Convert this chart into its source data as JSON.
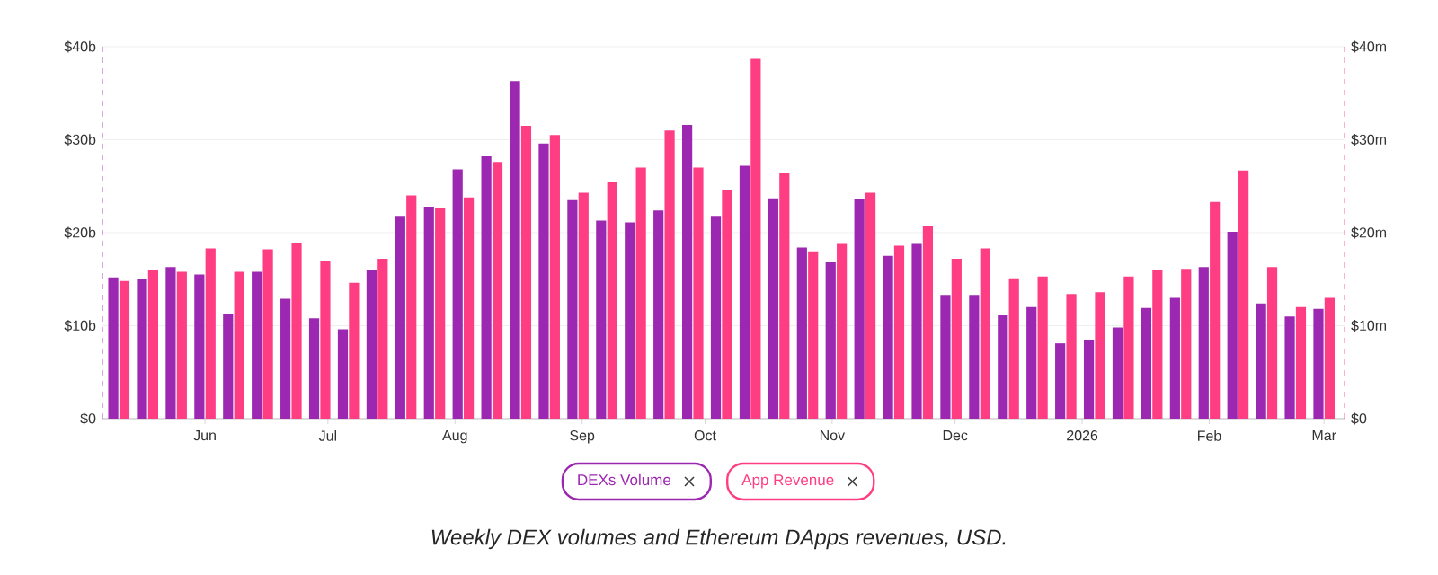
{
  "chart_data": {
    "type": "bar",
    "x": [
      "2025-05-11",
      "2025-05-18",
      "2025-05-25",
      "2025-06-01",
      "2025-06-08",
      "2025-06-15",
      "2025-06-22",
      "2025-06-29",
      "2025-07-06",
      "2025-07-13",
      "2025-07-20",
      "2025-07-27",
      "2025-08-03",
      "2025-08-10",
      "2025-08-17",
      "2025-08-24",
      "2025-08-31",
      "2025-09-07",
      "2025-09-14",
      "2025-09-21",
      "2025-09-28",
      "2025-10-05",
      "2025-10-12",
      "2025-10-19",
      "2025-10-26",
      "2025-11-02",
      "2025-11-09",
      "2025-11-16",
      "2025-11-23",
      "2025-11-30",
      "2025-12-07",
      "2025-12-14",
      "2025-12-21",
      "2025-12-28",
      "2026-01-04",
      "2026-01-11",
      "2026-01-18",
      "2026-01-25",
      "2026-02-01",
      "2026-02-08",
      "2026-02-15",
      "2026-02-22",
      "2026-03-01"
    ],
    "series": [
      {
        "name": "DEXs Volume",
        "color": "#9c27b0",
        "values": [
          15.2,
          15.0,
          16.3,
          15.5,
          11.3,
          15.8,
          12.9,
          10.8,
          9.6,
          16.0,
          21.8,
          22.8,
          26.8,
          28.2,
          36.3,
          29.6,
          23.5,
          21.3,
          21.1,
          22.4,
          31.6,
          21.8,
          27.2,
          23.7,
          18.4,
          16.8,
          23.6,
          17.5,
          18.8,
          13.3,
          13.3,
          11.1,
          12.0,
          8.1,
          8.5,
          9.8,
          11.9,
          13.0,
          16.3,
          20.1,
          12.4,
          11.0,
          11.8
        ]
      },
      {
        "name": "App Revenue",
        "color": "#ff3d82",
        "axis": "y2",
        "values": [
          14.8,
          16.0,
          15.8,
          18.3,
          15.8,
          18.2,
          18.9,
          17.0,
          14.6,
          17.2,
          24.0,
          22.7,
          23.8,
          27.6,
          31.5,
          30.5,
          24.3,
          25.4,
          27.0,
          31.0,
          27.0,
          24.6,
          38.7,
          26.4,
          18.0,
          18.8,
          24.3,
          18.6,
          20.7,
          17.2,
          18.3,
          15.1,
          15.3,
          13.4,
          13.6,
          15.3,
          16.0,
          16.1,
          23.3,
          26.7,
          16.3,
          12.0,
          13.0
        ]
      }
    ],
    "xlim": [
      "2025-05-07",
      "2026-03-06"
    ],
    "xticks": [
      {
        "value": "2025-06-01",
        "label": "Jun"
      },
      {
        "value": "2025-07-01",
        "label": "Jul"
      },
      {
        "value": "2025-08-01",
        "label": "Aug"
      },
      {
        "value": "2025-09-01",
        "label": "Sep"
      },
      {
        "value": "2025-10-01",
        "label": "Oct"
      },
      {
        "value": "2025-11-01",
        "label": "Nov"
      },
      {
        "value": "2025-12-01",
        "label": "Dec"
      },
      {
        "value": "2026-01-01",
        "label": "2026"
      },
      {
        "value": "2026-02-01",
        "label": "Feb"
      },
      {
        "value": "2026-03-01",
        "label": "Mar"
      }
    ],
    "ylim": [
      0,
      40
    ],
    "yticks": [
      {
        "value": 0,
        "label": "$0"
      },
      {
        "value": 10,
        "label": "$10b"
      },
      {
        "value": 20,
        "label": "$20b"
      },
      {
        "value": 30,
        "label": "$30b"
      },
      {
        "value": 40,
        "label": "$40b"
      }
    ],
    "y2lim": [
      0,
      40
    ],
    "y2ticks": [
      {
        "value": 0,
        "label": "$0"
      },
      {
        "value": 10,
        "label": "$10m"
      },
      {
        "value": 20,
        "label": "$20m"
      },
      {
        "value": 30,
        "label": "$30m"
      },
      {
        "value": 40,
        "label": "$40m"
      }
    ],
    "grid": "y",
    "legend": "bottom",
    "annotations": [
      "Weekly DEX volumes and Ethereum DApps revenues, USD."
    ]
  }
}
